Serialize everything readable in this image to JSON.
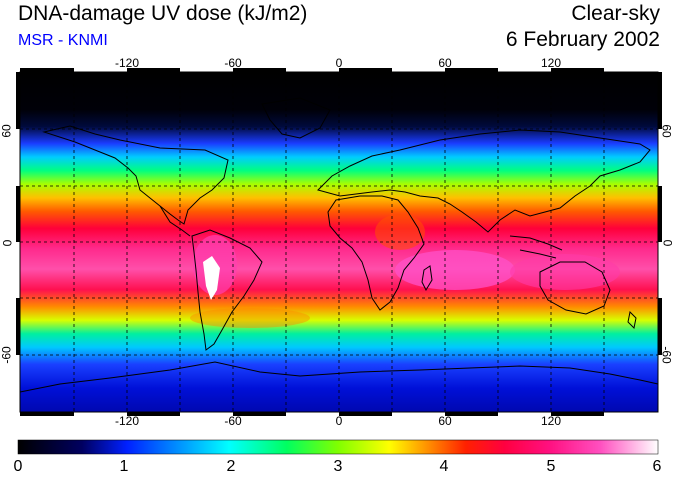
{
  "header": {
    "title": "DNA-damage UV dose (kJ/m2)",
    "source": "MSR - KNMI",
    "condition": "Clear-sky",
    "date": "6 February 2002"
  },
  "map": {
    "lon_ticks": [
      "-120",
      "-60",
      "0",
      "60",
      "120"
    ],
    "lat_ticks": [
      "60",
      "0",
      "-60"
    ],
    "lat_ticks_right": [
      "60",
      "0",
      "-60"
    ]
  },
  "colorbar": {
    "labels": [
      "0",
      "1",
      "2",
      "3",
      "4",
      "5",
      "6"
    ],
    "min": 0,
    "max": 6,
    "unit": "kJ/m2"
  },
  "colors": {
    "source_text": "#0000ff"
  }
}
